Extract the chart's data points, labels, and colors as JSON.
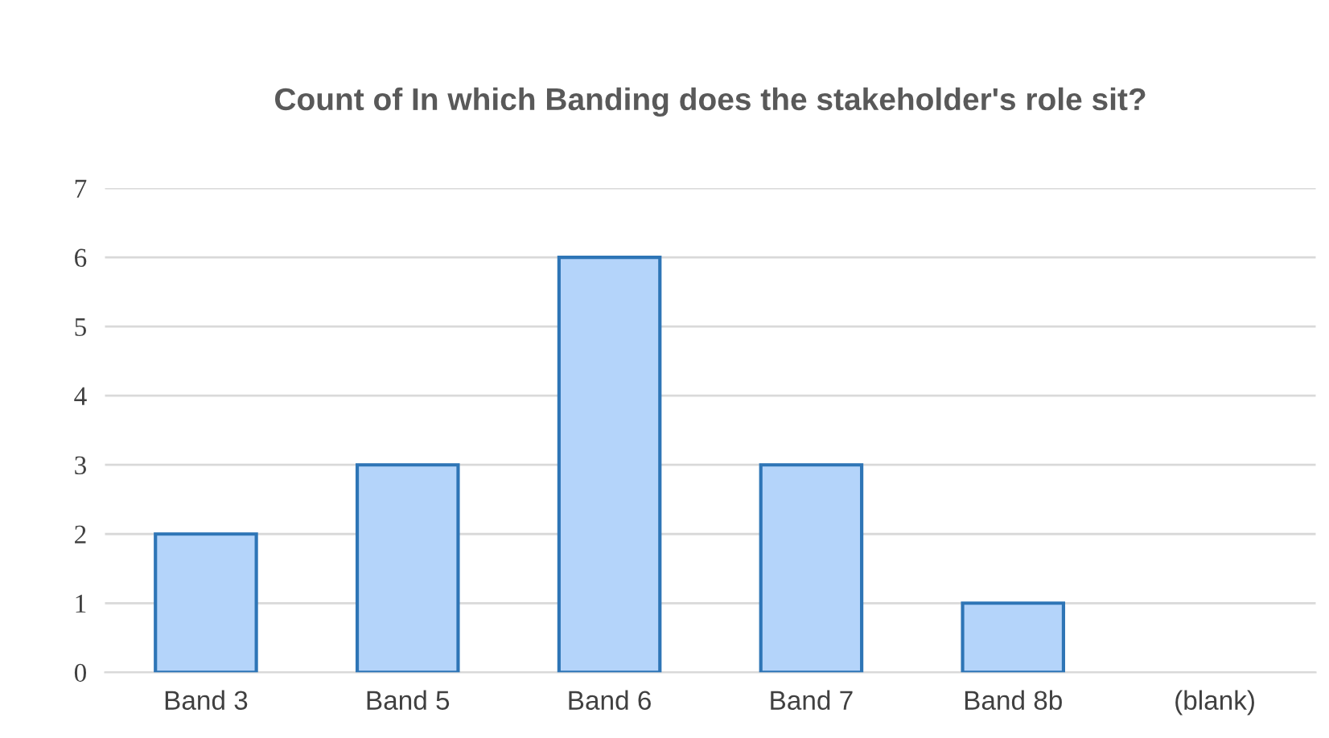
{
  "chart_data": {
    "type": "bar",
    "title": "Count of In which Banding does the stakeholder's role sit?",
    "categories": [
      "Band 3",
      "Band 5",
      "Band 6",
      "Band 7",
      "Band 8b",
      "(blank)"
    ],
    "values": [
      2,
      3,
      6,
      3,
      1,
      null
    ],
    "color": "#b4d4fa",
    "ylim": [
      0,
      7
    ],
    "yticks": [
      0,
      1,
      2,
      3,
      4,
      5,
      6,
      7
    ],
    "grid": "y",
    "legend": false
  }
}
